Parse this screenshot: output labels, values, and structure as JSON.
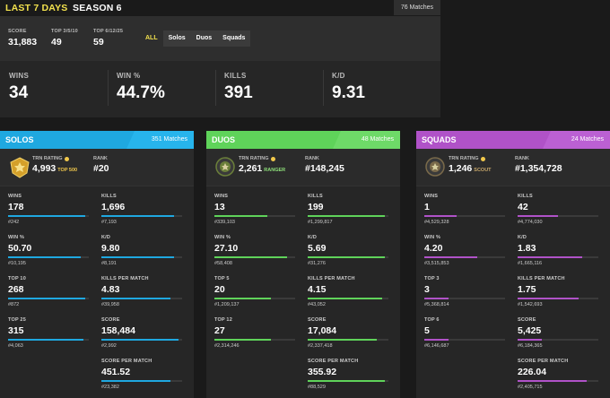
{
  "tabs": [
    {
      "label": "LAST 7 DAYS",
      "active": true
    },
    {
      "label": "SEASON 6",
      "active": false
    }
  ],
  "total_matches": "76 Matches",
  "summary": [
    {
      "label": "SCORE",
      "value": "31,883"
    },
    {
      "label": "TOP 3/5/10",
      "value": "49"
    },
    {
      "label": "TOP 6/12/25",
      "value": "59"
    }
  ],
  "filters": [
    {
      "label": "ALL",
      "active": true
    },
    {
      "label": "Solos",
      "active": false
    },
    {
      "label": "Duos",
      "active": false
    },
    {
      "label": "Squads",
      "active": false
    }
  ],
  "main_stats": [
    {
      "label": "WINS",
      "value": "34"
    },
    {
      "label": "WIN %",
      "value": "44.7%"
    },
    {
      "label": "KILLS",
      "value": "391"
    },
    {
      "label": "K/D",
      "value": "9.31"
    }
  ],
  "modes": [
    {
      "title": "SOLOS",
      "matches": "351 Matches",
      "color": "#1fa8e0",
      "accent": "#2dbef5",
      "rating_label": "TRN RATING",
      "rating": "4,993",
      "tier": "TOP 500",
      "tier_color": "#f2c94c",
      "rank_label": "RANK",
      "rank": "#20",
      "icon": "gold-shield-icon",
      "stats": [
        {
          "label": "WINS",
          "value": "178",
          "rank": "#242",
          "fill": 0.95
        },
        {
          "label": "KILLS",
          "value": "1,696",
          "rank": "#7,193",
          "fill": 0.9
        },
        {
          "label": "WIN %",
          "value": "50.70",
          "rank": "#10,195",
          "fill": 0.9
        },
        {
          "label": "K/D",
          "value": "9.80",
          "rank": "#8,191",
          "fill": 0.9
        },
        {
          "label": "TOP 10",
          "value": "268",
          "rank": "#872",
          "fill": 0.95
        },
        {
          "label": "KILLS PER MATCH",
          "value": "4.83",
          "rank": "#39,958",
          "fill": 0.85
        },
        {
          "label": "TOP 25",
          "value": "315",
          "rank": "#4,063",
          "fill": 0.93
        },
        {
          "label": "SCORE",
          "value": "158,484",
          "rank": "#2,992",
          "fill": 0.95
        },
        {
          "label": "",
          "value": "",
          "rank": "",
          "fill": 0
        },
        {
          "label": "SCORE PER MATCH",
          "value": "451.52",
          "rank": "#23,382",
          "fill": 0.85
        }
      ]
    },
    {
      "title": "DUOS",
      "matches": "48 Matches",
      "color": "#5fd35a",
      "accent": "#7ae074",
      "rating_label": "TRN RATING",
      "rating": "2,261",
      "tier": "RANGER",
      "tier_color": "#8ee07a",
      "rank_label": "RANK",
      "rank": "#148,245",
      "icon": "ranger-badge-icon",
      "stats": [
        {
          "label": "WINS",
          "value": "13",
          "rank": "#339,103",
          "fill": 0.65
        },
        {
          "label": "KILLS",
          "value": "199",
          "rank": "#1,299,817",
          "fill": 0.95
        },
        {
          "label": "WIN %",
          "value": "27.10",
          "rank": "#58,408",
          "fill": 0.9
        },
        {
          "label": "K/D",
          "value": "5.69",
          "rank": "#31,276",
          "fill": 0.95
        },
        {
          "label": "TOP 5",
          "value": "20",
          "rank": "#1,209,137",
          "fill": 0.7
        },
        {
          "label": "KILLS PER MATCH",
          "value": "4.15",
          "rank": "#43,052",
          "fill": 0.92
        },
        {
          "label": "TOP 12",
          "value": "27",
          "rank": "#2,314,246",
          "fill": 0.7
        },
        {
          "label": "SCORE",
          "value": "17,084",
          "rank": "#2,337,418",
          "fill": 0.85
        },
        {
          "label": "",
          "value": "",
          "rank": "",
          "fill": 0
        },
        {
          "label": "SCORE PER MATCH",
          "value": "355.92",
          "rank": "#88,529",
          "fill": 0.95
        }
      ]
    },
    {
      "title": "SQUADS",
      "matches": "24 Matches",
      "color": "#b052c8",
      "accent": "#c56bdc",
      "rating_label": "TRN RATING",
      "rating": "1,246",
      "tier": "SCOUT",
      "tier_color": "#c9a96c",
      "rank_label": "RANK",
      "rank": "#1,354,728",
      "icon": "scout-badge-icon",
      "stats": [
        {
          "label": "WINS",
          "value": "1",
          "rank": "#4,529,328",
          "fill": 0.4
        },
        {
          "label": "KILLS",
          "value": "42",
          "rank": "#4,774,030",
          "fill": 0.5
        },
        {
          "label": "WIN %",
          "value": "4.20",
          "rank": "#3,515,853",
          "fill": 0.65
        },
        {
          "label": "K/D",
          "value": "1.83",
          "rank": "#1,665,116",
          "fill": 0.8
        },
        {
          "label": "TOP 3",
          "value": "3",
          "rank": "#5,368,814",
          "fill": 0.3
        },
        {
          "label": "KILLS PER MATCH",
          "value": "1.75",
          "rank": "#1,542,693",
          "fill": 0.75
        },
        {
          "label": "TOP 6",
          "value": "5",
          "rank": "#6,146,687",
          "fill": 0.3
        },
        {
          "label": "SCORE",
          "value": "5,425",
          "rank": "#6,184,365",
          "fill": 0.3
        },
        {
          "label": "",
          "value": "",
          "rank": "",
          "fill": 0
        },
        {
          "label": "SCORE PER MATCH",
          "value": "226.04",
          "rank": "#2,405,715",
          "fill": 0.85
        }
      ]
    }
  ]
}
